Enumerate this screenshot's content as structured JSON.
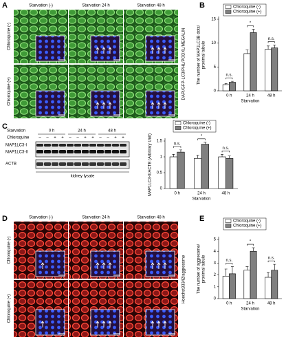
{
  "panels": {
    "A": {
      "letter": "A",
      "columns": [
        "Starvation (-)",
        "Starvation 24 h",
        "Starvation 48 h"
      ],
      "rows": [
        "Chloroquine (-)",
        "Chloroquine (+)"
      ],
      "stain": "DAPI/GFP-LC3/PHL/PODXL/MEGALIN"
    },
    "B": {
      "letter": "B"
    },
    "C": {
      "letter": "C",
      "blot": {
        "starvation_label": "Starvation",
        "times": [
          "0 h",
          "24 h",
          "48 h"
        ],
        "chloroquine_label": "Chloroquine",
        "signs": [
          "–",
          "–",
          "+",
          "+",
          "–",
          "–",
          "+",
          "+",
          "–",
          "–",
          "+",
          "+"
        ],
        "bands": [
          "MAP1LC3-I",
          "MAP1LC3-II",
          "ACTB"
        ],
        "lysate": "kidney lysate"
      }
    },
    "D": {
      "letter": "D",
      "columns": [
        "Starvation (-)",
        "Starvation 24 h",
        "Starvation 48 h"
      ],
      "rows": [
        "Chloroquine (-)",
        "Chloroquine (+)"
      ],
      "stain": "Hoechst33342/aggresome"
    },
    "E": {
      "letter": "E"
    }
  },
  "chart_data": [
    {
      "type": "bar",
      "ylabel": [
        "The number of MAP1LC3B dots/",
        "proximal tubule"
      ],
      "xlabel": "Starvation",
      "categories": [
        "0 h",
        "24 h",
        "48 h"
      ],
      "ylim": [
        0,
        15
      ],
      "yticks": [
        0,
        5,
        10,
        15
      ],
      "legend": "top",
      "series": [
        {
          "name": "Chloroquine (-)",
          "color": "#ffffff",
          "values": [
            1.3,
            7.8,
            8.7
          ],
          "errors": [
            0.2,
            0.8,
            0.7
          ]
        },
        {
          "name": "Chloroquine (+)",
          "color": "#808080",
          "values": [
            1.8,
            12.2,
            9.0
          ],
          "errors": [
            0.2,
            0.7,
            0.6
          ]
        }
      ],
      "annotations": [
        "n.s.",
        "*",
        "n.s."
      ]
    },
    {
      "type": "bar",
      "ylabel": [
        "MAP1LC3-II/ACTB (Arbitrary Unit)"
      ],
      "xlabel": "Starvation",
      "categories": [
        "0 h",
        "24 h",
        "48 h"
      ],
      "ylim": [
        0,
        1.5
      ],
      "yticks": [
        0,
        0.5,
        1,
        1.5
      ],
      "legend": "top",
      "series": [
        {
          "name": "Chloroquine (-)",
          "color": "#ffffff",
          "values": [
            1.0,
            0.95,
            1.0
          ],
          "errors": [
            0.08,
            0.1,
            0.08
          ]
        },
        {
          "name": "Chloroquine (+)",
          "color": "#808080",
          "values": [
            1.15,
            1.4,
            0.95
          ],
          "errors": [
            0.07,
            0.06,
            0.08
          ]
        }
      ],
      "annotations": [
        "n.s.",
        "*",
        "n.s."
      ]
    },
    {
      "type": "bar",
      "ylabel": [
        "The number of aggresome/",
        "proximal tubule"
      ],
      "xlabel": "Starvation",
      "categories": [
        "0 h",
        "24 h",
        "48 h"
      ],
      "ylim": [
        0,
        5
      ],
      "yticks": [
        0,
        1,
        2,
        3,
        4,
        5
      ],
      "legend": "top",
      "series": [
        {
          "name": "Chloroquine (-)",
          "color": "#ffffff",
          "values": [
            1.9,
            2.4,
            1.8
          ],
          "errors": [
            0.6,
            0.3,
            0.4
          ]
        },
        {
          "name": "Chloroquine (+)",
          "color": "#808080",
          "values": [
            2.1,
            4.0,
            2.4
          ],
          "errors": [
            0.6,
            0.3,
            0.5
          ]
        }
      ],
      "annotations": [
        "n.s.",
        "*",
        "n.s."
      ]
    }
  ]
}
